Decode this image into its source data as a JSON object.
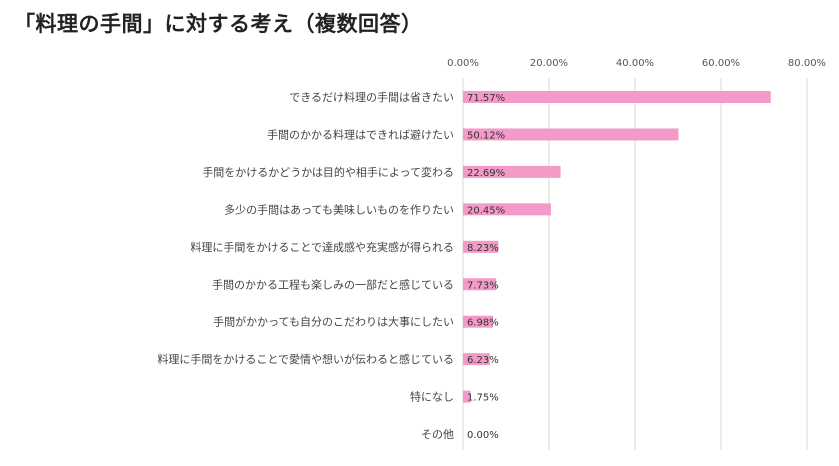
{
  "chart_data": {
    "type": "bar",
    "orientation": "horizontal",
    "title": "「料理の手間」に対する考え（複数回答）",
    "categories": [
      "できるだけ料理の手間は省きたい",
      "手間のかかる料理はできれば避けたい",
      "手間をかけるかどうかは目的や相手によって変わる",
      "多少の手間はあっても美味しいものを作りたい",
      "料理に手間をかけることで達成感や充実感が得られる",
      "手間のかかる工程も楽しみの一部だと感じている",
      "手間がかかっても自分のこだわりは大事にしたい",
      "料理に手間をかけることで愛情や想いが伝わると感じている",
      "特になし",
      "その他"
    ],
    "values": [
      71.57,
      50.12,
      22.69,
      20.45,
      8.23,
      7.73,
      6.98,
      6.23,
      1.75,
      0.0
    ],
    "data_labels": [
      "71.57%",
      "50.12%",
      "22.69%",
      "20.45%",
      "8.23%",
      "7.73%",
      "6.98%",
      "6.23%",
      "1.75%",
      "0.00%"
    ],
    "xlim": [
      0,
      80
    ],
    "xticks": [
      0,
      20,
      40,
      60,
      80
    ],
    "xtick_labels": [
      "0.00%",
      "20.00%",
      "40.00%",
      "60.00%",
      "80.00%"
    ],
    "grid": true,
    "legend": "none",
    "bar_color": "#f49ac8",
    "grid_color": "#d9d9d9"
  }
}
